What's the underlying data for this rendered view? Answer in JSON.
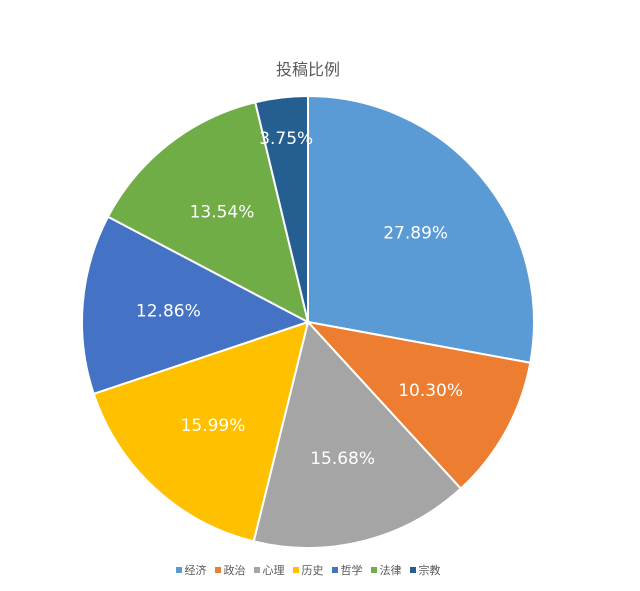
{
  "chart_data": {
    "type": "pie",
    "title": "投稿比例",
    "start_angle": "12 o'clock, clockwise",
    "legend_position": "bottom",
    "categories": [
      "经济",
      "政治",
      "心理",
      "历史",
      "哲学",
      "法律",
      "宗教"
    ],
    "values": [
      27.89,
      10.3,
      15.68,
      15.99,
      12.86,
      13.54,
      3.75
    ],
    "labels": [
      "27.89%",
      "10.30%",
      "15.68%",
      "15.99%",
      "12.86%",
      "13.54%",
      "3.75%"
    ],
    "colors": [
      "#5B9BD5",
      "#ED7D31",
      "#A5A5A5",
      "#FFC000",
      "#4472C4",
      "#70AD47",
      "#255E91"
    ]
  }
}
